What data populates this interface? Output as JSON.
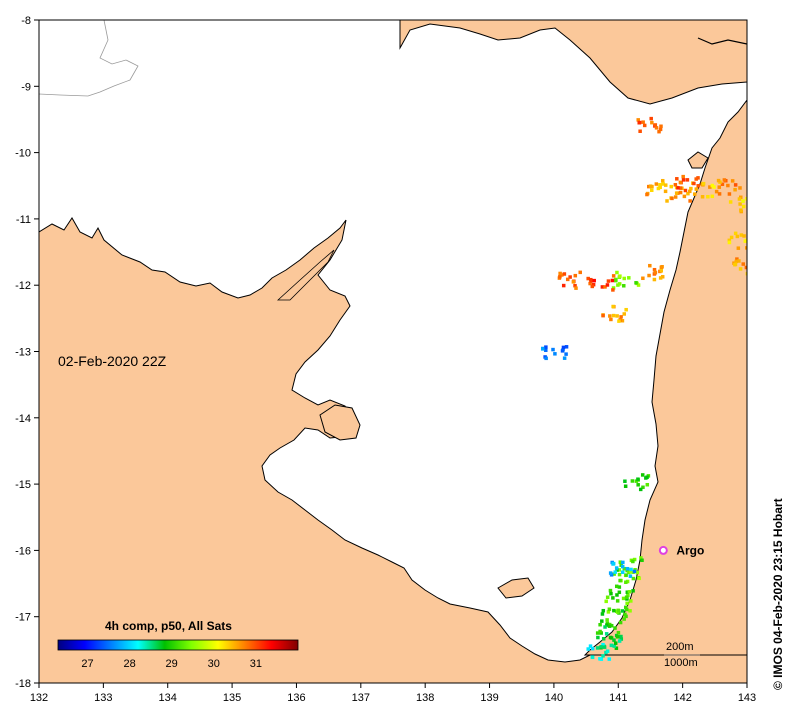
{
  "map": {
    "date_label": "02-Feb-2020 22Z",
    "credit": "© IMOS 04-Feb-2020 23:15 Hobart",
    "x_ticks": [
      "132",
      "133",
      "134",
      "135",
      "136",
      "137",
      "138",
      "139",
      "140",
      "141",
      "142",
      "143"
    ],
    "y_ticks": [
      "-8",
      "-9",
      "-10",
      "-11",
      "-12",
      "-13",
      "-14",
      "-15",
      "-16",
      "-17",
      "-18"
    ],
    "lon_range": [
      132,
      143
    ],
    "lat_range": [
      -18,
      -8
    ],
    "land_color": "#FBC89A",
    "coast_color": "#000000",
    "argo": {
      "label": "Argo",
      "lon": 141.7,
      "lat": -16.0,
      "color": "#E040E0"
    },
    "scale_labels": [
      "200m",
      "1000m"
    ],
    "colorbar": {
      "title": "4h comp, p50, All Sats",
      "labels": [
        "27",
        "28",
        "29",
        "30",
        "31"
      ],
      "range": [
        26.3,
        32
      ],
      "colors": [
        "#000080",
        "#0000FF",
        "#0080FF",
        "#00FFFF",
        "#00C000",
        "#80FF00",
        "#FFFF00",
        "#FF8000",
        "#FF0000",
        "#800000"
      ]
    },
    "sst_patches": [
      {
        "lon": 141.6,
        "lat": -10.5,
        "value": 30.5
      },
      {
        "lon": 141.9,
        "lat": -10.6,
        "value": 30.6
      },
      {
        "lon": 142.3,
        "lat": -10.55,
        "value": 30.4
      },
      {
        "lon": 142.7,
        "lat": -10.5,
        "value": 30.7
      },
      {
        "lon": 142.9,
        "lat": -10.75,
        "value": 30.3
      },
      {
        "lon": 142.05,
        "lat": -10.45,
        "value": 31.0
      },
      {
        "lon": 141.45,
        "lat": -9.55,
        "value": 30.9
      },
      {
        "lon": 142.9,
        "lat": -11.3,
        "value": 30.4
      },
      {
        "lon": 142.95,
        "lat": -11.7,
        "value": 30.6
      },
      {
        "lon": 141.55,
        "lat": -11.8,
        "value": 30.7
      },
      {
        "lon": 141.1,
        "lat": -11.9,
        "value": 29.4
      },
      {
        "lon": 140.7,
        "lat": -11.95,
        "value": 31.1
      },
      {
        "lon": 140.2,
        "lat": -11.9,
        "value": 30.9
      },
      {
        "lon": 140.9,
        "lat": -12.4,
        "value": 30.6
      },
      {
        "lon": 140.0,
        "lat": -13.0,
        "value": 27.5
      },
      {
        "lon": 141.25,
        "lat": -14.95,
        "value": 29.0
      },
      {
        "lon": 141.15,
        "lat": -16.2,
        "value": 29.2
      },
      {
        "lon": 141.1,
        "lat": -16.4,
        "value": 29.4
      },
      {
        "lon": 141.05,
        "lat": -16.6,
        "value": 29.1
      },
      {
        "lon": 140.98,
        "lat": -16.8,
        "value": 29.3
      },
      {
        "lon": 140.9,
        "lat": -17.0,
        "value": 29.0
      },
      {
        "lon": 140.85,
        "lat": -17.2,
        "value": 28.9
      },
      {
        "lon": 140.8,
        "lat": -17.35,
        "value": 28.7
      },
      {
        "lon": 140.7,
        "lat": -17.5,
        "value": 28.3
      },
      {
        "lon": 141.05,
        "lat": -16.25,
        "value": 27.8
      }
    ]
  }
}
